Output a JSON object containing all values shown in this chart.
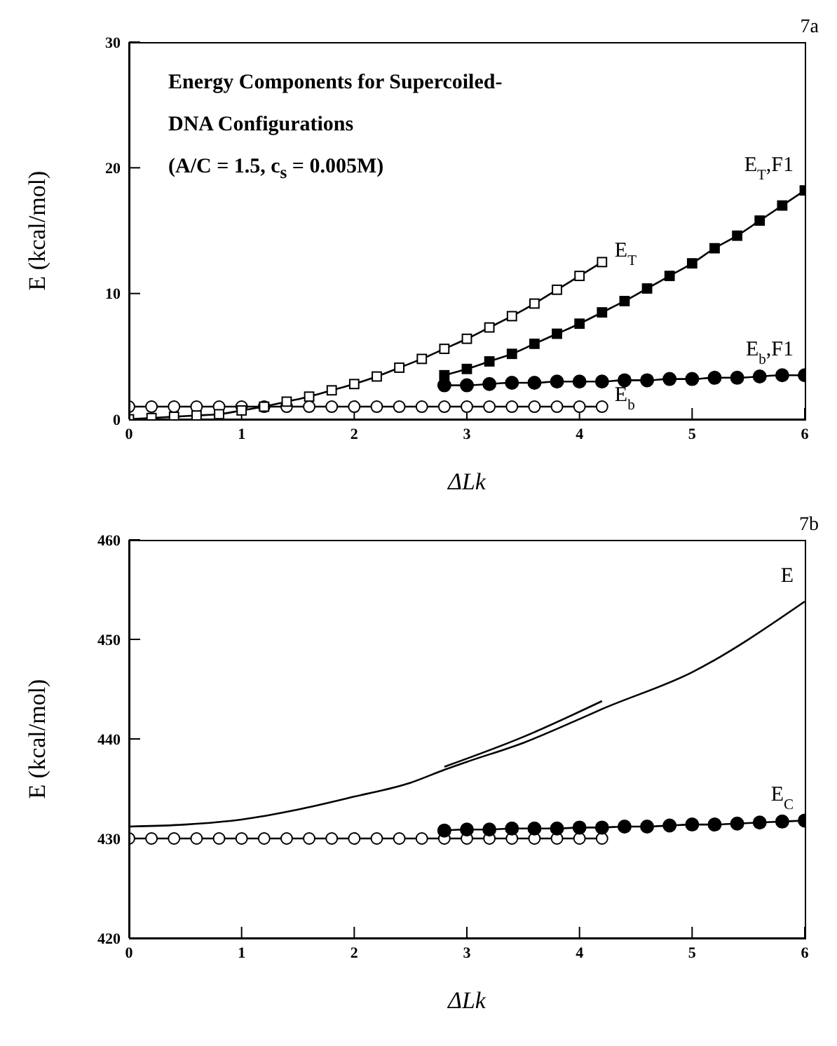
{
  "chart_data": [
    {
      "type": "line",
      "title": "Energy Components for Supercoiled-DNA Configurations",
      "subtitle": "(A/C = 1.5, c$_{s}$ = 0.005M)",
      "xlabel": "ΔLk",
      "ylabel": "E (kcal/mol)",
      "annotations": [
        "7a"
      ],
      "xlim": [
        0,
        6
      ],
      "xticks": [
        0,
        1,
        2,
        3,
        4,
        5,
        6
      ],
      "ylim": [
        0,
        30
      ],
      "yticks": [
        0,
        10,
        20,
        30
      ],
      "line_style": "solid",
      "series": [
        {
          "name": "E$_{b}$",
          "color": "#000000",
          "marker": "circle",
          "x": [
            0,
            0.2,
            0.4,
            0.6,
            0.8,
            1.0,
            1.2,
            1.4,
            1.6,
            1.8,
            2.0,
            2.2,
            2.4,
            2.6,
            2.8,
            3.0,
            3.2,
            3.4,
            3.6,
            3.8,
            4.0,
            4.2
          ],
          "values": [
            1.0,
            1.0,
            1.0,
            1.0,
            1.0,
            1.0,
            1.0,
            1.0,
            1.0,
            1.0,
            1.0,
            1.0,
            1.0,
            1.0,
            1.0,
            1.0,
            1.0,
            1.0,
            1.0,
            1.0,
            1.0,
            1.0
          ]
        },
        {
          "name": "E$_{T}$",
          "color": "#000000",
          "marker": "square",
          "x": [
            0,
            0.2,
            0.4,
            0.6,
            0.8,
            1.0,
            1.2,
            1.4,
            1.6,
            1.8,
            2.0,
            2.2,
            2.4,
            2.6,
            2.8,
            3.0,
            3.2,
            3.4,
            3.6,
            3.8,
            4.0,
            4.2
          ],
          "values": [
            0,
            0.1,
            0.2,
            0.3,
            0.4,
            0.7,
            1.0,
            1.4,
            1.8,
            2.3,
            2.8,
            3.4,
            4.1,
            4.8,
            5.6,
            6.4,
            7.3,
            8.2,
            9.2,
            10.3,
            11.4,
            12.5
          ]
        },
        {
          "name": "E$_{T}$,F1",
          "color": "#000000",
          "marker": "square",
          "x": [
            2.8,
            3.0,
            3.2,
            3.4,
            3.6,
            3.8,
            4.0,
            4.2,
            4.4,
            4.6,
            4.8,
            5.0,
            5.2,
            5.4,
            5.6,
            5.8,
            6.0
          ],
          "values": [
            3.5,
            4.0,
            4.6,
            5.2,
            6.0,
            6.8,
            7.6,
            8.5,
            9.4,
            10.4,
            11.4,
            12.4,
            13.6,
            14.6,
            15.8,
            17.0,
            18.2
          ]
        },
        {
          "name": "E$_{b}$,F1",
          "color": "#000000",
          "marker": "circle",
          "x": [
            2.8,
            3.0,
            3.2,
            3.4,
            3.6,
            3.8,
            4.0,
            4.2,
            4.4,
            4.6,
            4.8,
            5.0,
            5.2,
            5.4,
            5.6,
            5.8,
            6.0
          ],
          "values": [
            2.7,
            2.7,
            2.8,
            2.9,
            2.9,
            3.0,
            3.0,
            3.0,
            3.1,
            3.1,
            3.2,
            3.2,
            3.3,
            3.3,
            3.4,
            3.5,
            3.5
          ]
        }
      ]
    },
    {
      "type": "line",
      "xlabel": "ΔLk",
      "ylabel": "E (kcal/mol)",
      "annotations": [
        "7b"
      ],
      "xlim": [
        0,
        6
      ],
      "xticks": [
        0,
        1,
        2,
        3,
        4,
        5,
        6
      ],
      "ylim": [
        420,
        460
      ],
      "yticks": [
        420,
        430,
        440,
        450,
        460
      ],
      "line_style": "solid",
      "series": [
        {
          "name": "E",
          "color": "#000000",
          "marker": "none",
          "x": [
            0,
            0.5,
            1.0,
            1.5,
            2.0,
            2.5,
            2.8,
            3.0,
            3.5,
            4.0,
            4.2,
            5.0,
            6.0
          ],
          "values": [
            431.2,
            431.4,
            431.9,
            432.9,
            434.2,
            435.6,
            436.9,
            437.7,
            439.6,
            442.0,
            443.0,
            446.7,
            453.8
          ]
        },
        {
          "color": "#000000",
          "marker": "none",
          "x": [
            2.8,
            3.5,
            4.2
          ],
          "values": [
            437.2,
            440.2,
            443.8
          ]
        },
        {
          "color": "#000000",
          "marker": "circle",
          "x": [
            0,
            0.2,
            0.4,
            0.6,
            0.8,
            1.0,
            1.2,
            1.4,
            1.6,
            1.8,
            2.0,
            2.2,
            2.4,
            2.6,
            2.8,
            3.0,
            3.2,
            3.4,
            3.6,
            3.8,
            4.0,
            4.2
          ],
          "values": [
            430,
            430,
            430,
            430,
            430,
            430,
            430,
            430,
            430,
            430,
            430,
            430,
            430,
            430,
            430,
            430,
            430,
            430,
            430,
            430,
            430,
            430
          ]
        },
        {
          "name": "E$_{C}$",
          "color": "#000000",
          "marker": "circle",
          "x": [
            2.8,
            3.0,
            3.2,
            3.4,
            3.6,
            3.8,
            4.0,
            4.2,
            4.4,
            4.6,
            4.8,
            5.0,
            5.2,
            5.4,
            5.6,
            5.8,
            6.0
          ],
          "values": [
            430.8,
            430.9,
            430.9,
            431.0,
            431.0,
            431.0,
            431.1,
            431.1,
            431.2,
            431.2,
            431.3,
            431.4,
            431.4,
            431.5,
            431.6,
            431.7,
            431.8
          ]
        }
      ]
    }
  ]
}
